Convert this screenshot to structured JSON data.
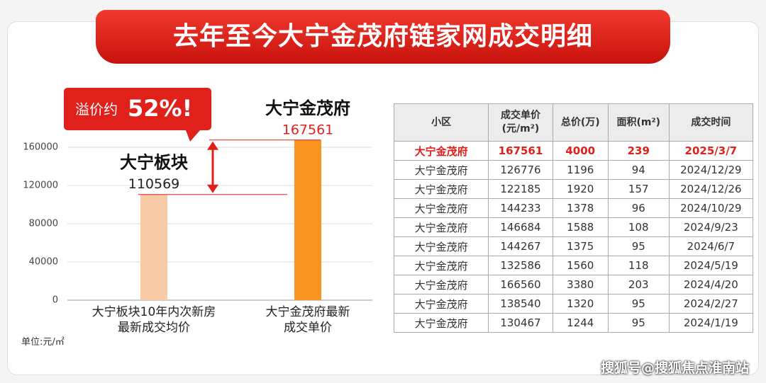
{
  "header": {
    "title": "去年至今大宁金茂府链家网成交明细"
  },
  "chart_data": {
    "type": "bar",
    "categories": [
      "大宁板块10年内次新房\n最新成交均价",
      "大宁金茂府最新\n成交单价"
    ],
    "bar_names": [
      "大宁板块",
      "大宁金茂府"
    ],
    "values": [
      110569,
      167561
    ],
    "colors": [
      "#f8cba6",
      "#f7931e"
    ],
    "ylim": [
      0,
      180000
    ],
    "yticks": [
      0,
      40000,
      80000,
      120000,
      160000
    ],
    "grid": true,
    "unit": "单位:元/㎡",
    "badge": {
      "prefix": "溢价约",
      "value": "52%!"
    }
  },
  "table": {
    "headers": [
      "小区",
      "成交单价\n(元/m²)",
      "总价(万)",
      "面积(m²)",
      "成交时间"
    ],
    "rows": [
      [
        "大宁金茂府",
        "167561",
        "4000",
        "239",
        "2025/3/7"
      ],
      [
        "大宁金茂府",
        "126776",
        "1196",
        "94",
        "2024/12/29"
      ],
      [
        "大宁金茂府",
        "122185",
        "1920",
        "157",
        "2024/12/26"
      ],
      [
        "大宁金茂府",
        "144233",
        "1378",
        "96",
        "2024/10/29"
      ],
      [
        "大宁金茂府",
        "146684",
        "1588",
        "108",
        "2024/9/23"
      ],
      [
        "大宁金茂府",
        "144267",
        "1375",
        "95",
        "2024/6/7"
      ],
      [
        "大宁金茂府",
        "132586",
        "1560",
        "118",
        "2024/5/19"
      ],
      [
        "大宁金茂府",
        "166560",
        "3380",
        "203",
        "2024/4/20"
      ],
      [
        "大宁金茂府",
        "138540",
        "1320",
        "95",
        "2024/2/27"
      ],
      [
        "大宁金茂府",
        "130467",
        "1244",
        "95",
        "2024/1/19"
      ]
    ]
  },
  "footer": {
    "watermark": "搜狐号@搜狐焦点淮南站"
  }
}
